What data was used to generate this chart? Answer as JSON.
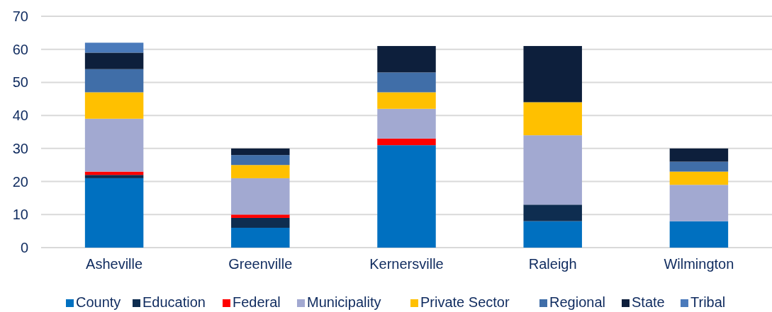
{
  "chart_data": {
    "type": "bar",
    "stacked": true,
    "categories": [
      "Asheville",
      "Greenville",
      "Kernersville",
      "Raleigh",
      "Wilmington"
    ],
    "series": [
      {
        "name": "County",
        "color": "#0070c0",
        "values": [
          21,
          6,
          31,
          8,
          8
        ]
      },
      {
        "name": "Education",
        "color": "#0e2d50",
        "values": [
          1,
          3,
          0,
          5,
          0
        ]
      },
      {
        "name": "Federal",
        "color": "#ff0000",
        "values": [
          1,
          1,
          2,
          0,
          0
        ]
      },
      {
        "name": "Municipality",
        "color": "#a2a9d1",
        "values": [
          16,
          11,
          9,
          21,
          11
        ]
      },
      {
        "name": "Private Sector",
        "color": "#ffc000",
        "values": [
          8,
          4,
          5,
          10,
          4
        ]
      },
      {
        "name": "Regional",
        "color": "#406ea8",
        "values": [
          7,
          3,
          6,
          0,
          3
        ]
      },
      {
        "name": "State",
        "color": "#0d1f3c",
        "values": [
          5,
          2,
          8,
          17,
          4
        ]
      },
      {
        "name": "Tribal",
        "color": "#4a7abb",
        "values": [
          3,
          0,
          0,
          0,
          0
        ]
      }
    ],
    "ylim": [
      0,
      70
    ],
    "yticks": [
      0,
      10,
      20,
      30,
      40,
      50,
      60,
      70
    ],
    "grid": "y",
    "legend": "bottom"
  }
}
